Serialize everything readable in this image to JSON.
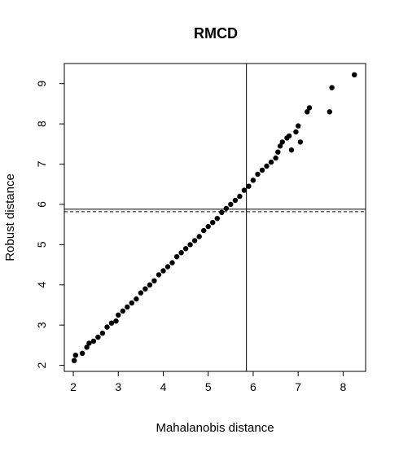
{
  "chart_data": {
    "type": "scatter",
    "title": "RMCD",
    "xlabel": "Mahalanobis distance",
    "ylabel": "Robust distance",
    "xlim": [
      1.8,
      8.5
    ],
    "ylim": [
      1.85,
      9.5
    ],
    "xticks": [
      2,
      3,
      4,
      5,
      6,
      7,
      8
    ],
    "yticks": [
      2,
      3,
      4,
      5,
      6,
      7,
      8,
      9
    ],
    "grid": false,
    "legend": "none",
    "cutoffs": {
      "vertical": 5.85,
      "horizontal_solid": 5.88,
      "horizontal_dashed": 5.82
    },
    "series": [
      {
        "points": [
          [
            2.02,
            2.12
          ],
          [
            2.05,
            2.25
          ],
          [
            2.2,
            2.3
          ],
          [
            2.3,
            2.45
          ],
          [
            2.35,
            2.55
          ],
          [
            2.45,
            2.6
          ],
          [
            2.55,
            2.7
          ],
          [
            2.65,
            2.8
          ],
          [
            2.75,
            2.95
          ],
          [
            2.85,
            3.05
          ],
          [
            2.95,
            3.1
          ],
          [
            3.0,
            3.25
          ],
          [
            3.1,
            3.35
          ],
          [
            3.2,
            3.45
          ],
          [
            3.3,
            3.55
          ],
          [
            3.4,
            3.65
          ],
          [
            3.5,
            3.8
          ],
          [
            3.6,
            3.9
          ],
          [
            3.7,
            4.0
          ],
          [
            3.8,
            4.1
          ],
          [
            3.9,
            4.25
          ],
          [
            4.0,
            4.35
          ],
          [
            4.1,
            4.45
          ],
          [
            4.2,
            4.55
          ],
          [
            4.3,
            4.7
          ],
          [
            4.4,
            4.8
          ],
          [
            4.5,
            4.9
          ],
          [
            4.6,
            5.0
          ],
          [
            4.7,
            5.1
          ],
          [
            4.8,
            5.2
          ],
          [
            4.9,
            5.35
          ],
          [
            5.0,
            5.45
          ],
          [
            5.1,
            5.55
          ],
          [
            5.2,
            5.65
          ],
          [
            5.3,
            5.8
          ],
          [
            5.4,
            5.9
          ],
          [
            5.5,
            6.0
          ],
          [
            5.6,
            6.1
          ],
          [
            5.7,
            6.2
          ],
          [
            5.8,
            6.35
          ],
          [
            5.9,
            6.45
          ],
          [
            6.0,
            6.6
          ],
          [
            6.1,
            6.75
          ],
          [
            6.2,
            6.85
          ],
          [
            6.3,
            6.95
          ],
          [
            6.4,
            7.05
          ],
          [
            6.5,
            7.15
          ],
          [
            6.55,
            7.3
          ],
          [
            6.6,
            7.45
          ],
          [
            6.65,
            7.55
          ],
          [
            6.75,
            7.65
          ],
          [
            6.8,
            7.7
          ],
          [
            6.85,
            7.35
          ],
          [
            6.95,
            7.8
          ],
          [
            7.0,
            7.95
          ],
          [
            7.05,
            7.55
          ],
          [
            7.2,
            8.3
          ],
          [
            7.25,
            8.4
          ],
          [
            7.7,
            8.3
          ],
          [
            7.75,
            8.9
          ],
          [
            8.25,
            9.22
          ]
        ]
      }
    ]
  }
}
